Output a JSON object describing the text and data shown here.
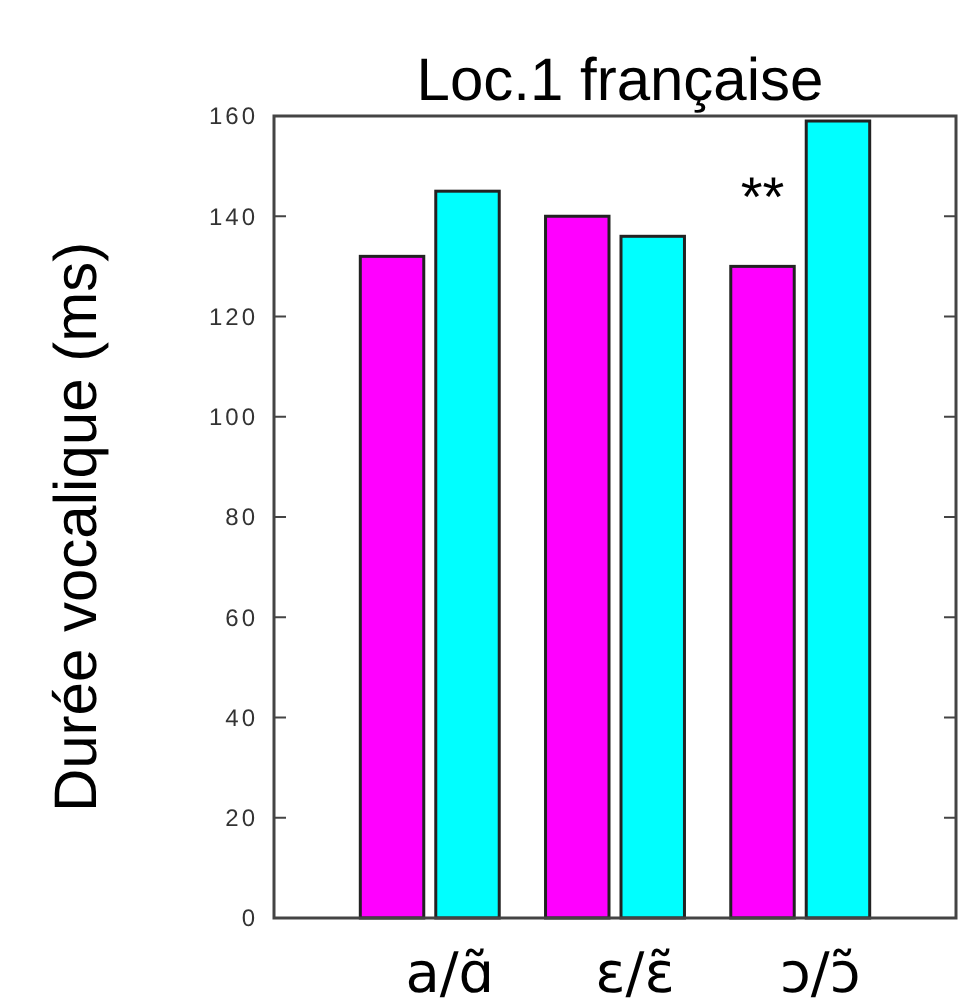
{
  "chart_data": {
    "type": "bar",
    "title": "Loc.1 française",
    "ylabel": "Durée vocalique (ms)",
    "categories": [
      "a/ɑ̃",
      "ε/ε̃",
      "ɔ/ɔ̃"
    ],
    "series": [
      {
        "color": "#ff00ff",
        "values": [
          132,
          140,
          130
        ]
      },
      {
        "color": "#00ffff",
        "values": [
          145,
          136,
          159
        ]
      }
    ],
    "ylim": [
      0,
      160
    ],
    "yticks": [
      0,
      20,
      40,
      60,
      80,
      100,
      120,
      140,
      160
    ],
    "grid": false,
    "annotations": [
      "**"
    ]
  }
}
